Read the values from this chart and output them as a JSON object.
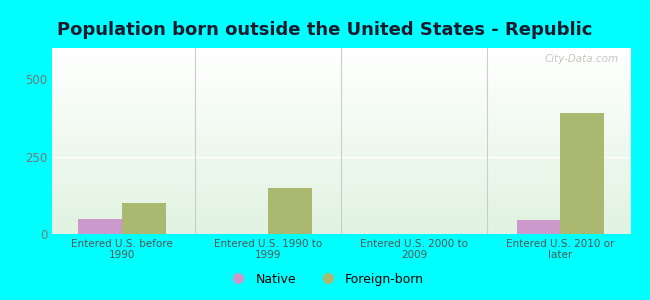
{
  "title": "Population born outside the United States - Republic",
  "categories": [
    "Entered U.S. before\n1990",
    "Entered U.S. 1990 to\n1999",
    "Entered U.S. 2000 to\n2009",
    "Entered U.S. 2010 or\nlater"
  ],
  "native_values": [
    50,
    0,
    0,
    45
  ],
  "foreign_values": [
    100,
    150,
    0,
    390
  ],
  "native_color": "#cc99cc",
  "foreign_color": "#aab870",
  "background_color": "#00ffff",
  "ylim": [
    0,
    600
  ],
  "yticks": [
    0,
    250,
    500
  ],
  "bar_width": 0.3,
  "title_fontsize": 13,
  "legend_native": "Native",
  "legend_foreign": "Foreign-born",
  "watermark": "City-Data.com"
}
